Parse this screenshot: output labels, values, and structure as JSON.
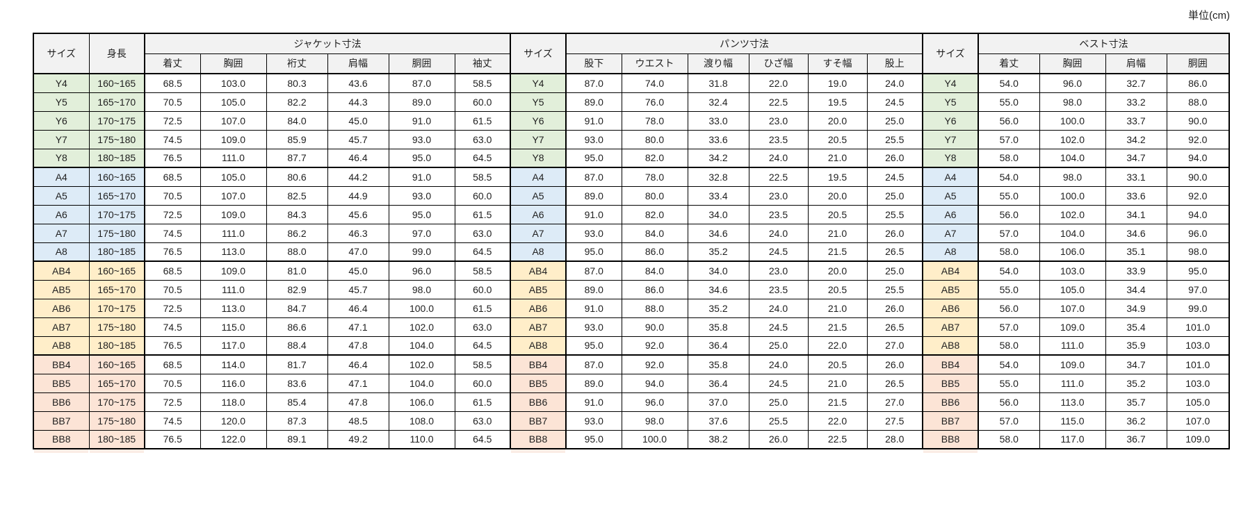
{
  "unit_label": "単位(cm)",
  "colors": {
    "group_y": "#e2efda",
    "group_a": "#ddebf7",
    "group_ab": "#ffeec9",
    "group_bb": "#fce4d6",
    "header_bg": "#f2f2f2",
    "border": "#000000"
  },
  "table": {
    "headers": {
      "size": "サイズ",
      "height": "身長",
      "jacket_group": "ジャケット寸法",
      "jacket_cols": [
        "着丈",
        "胸囲",
        "裄丈",
        "肩幅",
        "胴囲",
        "袖丈"
      ],
      "pants_group": "パンツ寸法",
      "pants_cols": [
        "股下",
        "ウエスト",
        "渡り幅",
        "ひざ幅",
        "すそ幅",
        "股上"
      ],
      "vest_group": "ベスト寸法",
      "vest_cols": [
        "着丈",
        "胸囲",
        "肩幅",
        "胴囲"
      ]
    },
    "groups": [
      {
        "name": "Y",
        "color": "#e2efda",
        "rows": [
          {
            "size": "Y4",
            "height": "160~165",
            "jacket": [
              "68.5",
              "103.0",
              "80.3",
              "43.6",
              "87.0",
              "58.5"
            ],
            "pants": [
              "87.0",
              "74.0",
              "31.8",
              "22.0",
              "19.0",
              "24.0"
            ],
            "vest": [
              "54.0",
              "96.0",
              "32.7",
              "86.0"
            ]
          },
          {
            "size": "Y5",
            "height": "165~170",
            "jacket": [
              "70.5",
              "105.0",
              "82.2",
              "44.3",
              "89.0",
              "60.0"
            ],
            "pants": [
              "89.0",
              "76.0",
              "32.4",
              "22.5",
              "19.5",
              "24.5"
            ],
            "vest": [
              "55.0",
              "98.0",
              "33.2",
              "88.0"
            ]
          },
          {
            "size": "Y6",
            "height": "170~175",
            "jacket": [
              "72.5",
              "107.0",
              "84.0",
              "45.0",
              "91.0",
              "61.5"
            ],
            "pants": [
              "91.0",
              "78.0",
              "33.0",
              "23.0",
              "20.0",
              "25.0"
            ],
            "vest": [
              "56.0",
              "100.0",
              "33.7",
              "90.0"
            ]
          },
          {
            "size": "Y7",
            "height": "175~180",
            "jacket": [
              "74.5",
              "109.0",
              "85.9",
              "45.7",
              "93.0",
              "63.0"
            ],
            "pants": [
              "93.0",
              "80.0",
              "33.6",
              "23.5",
              "20.5",
              "25.5"
            ],
            "vest": [
              "57.0",
              "102.0",
              "34.2",
              "92.0"
            ]
          },
          {
            "size": "Y8",
            "height": "180~185",
            "jacket": [
              "76.5",
              "111.0",
              "87.7",
              "46.4",
              "95.0",
              "64.5"
            ],
            "pants": [
              "95.0",
              "82.0",
              "34.2",
              "24.0",
              "21.0",
              "26.0"
            ],
            "vest": [
              "58.0",
              "104.0",
              "34.7",
              "94.0"
            ]
          }
        ]
      },
      {
        "name": "A",
        "color": "#ddebf7",
        "rows": [
          {
            "size": "A4",
            "height": "160~165",
            "jacket": [
              "68.5",
              "105.0",
              "80.6",
              "44.2",
              "91.0",
              "58.5"
            ],
            "pants": [
              "87.0",
              "78.0",
              "32.8",
              "22.5",
              "19.5",
              "24.5"
            ],
            "vest": [
              "54.0",
              "98.0",
              "33.1",
              "90.0"
            ]
          },
          {
            "size": "A5",
            "height": "165~170",
            "jacket": [
              "70.5",
              "107.0",
              "82.5",
              "44.9",
              "93.0",
              "60.0"
            ],
            "pants": [
              "89.0",
              "80.0",
              "33.4",
              "23.0",
              "20.0",
              "25.0"
            ],
            "vest": [
              "55.0",
              "100.0",
              "33.6",
              "92.0"
            ]
          },
          {
            "size": "A6",
            "height": "170~175",
            "jacket": [
              "72.5",
              "109.0",
              "84.3",
              "45.6",
              "95.0",
              "61.5"
            ],
            "pants": [
              "91.0",
              "82.0",
              "34.0",
              "23.5",
              "20.5",
              "25.5"
            ],
            "vest": [
              "56.0",
              "102.0",
              "34.1",
              "94.0"
            ]
          },
          {
            "size": "A7",
            "height": "175~180",
            "jacket": [
              "74.5",
              "111.0",
              "86.2",
              "46.3",
              "97.0",
              "63.0"
            ],
            "pants": [
              "93.0",
              "84.0",
              "34.6",
              "24.0",
              "21.0",
              "26.0"
            ],
            "vest": [
              "57.0",
              "104.0",
              "34.6",
              "96.0"
            ]
          },
          {
            "size": "A8",
            "height": "180~185",
            "jacket": [
              "76.5",
              "113.0",
              "88.0",
              "47.0",
              "99.0",
              "64.5"
            ],
            "pants": [
              "95.0",
              "86.0",
              "35.2",
              "24.5",
              "21.5",
              "26.5"
            ],
            "vest": [
              "58.0",
              "106.0",
              "35.1",
              "98.0"
            ]
          }
        ]
      },
      {
        "name": "AB",
        "color": "#ffeec9",
        "rows": [
          {
            "size": "AB4",
            "height": "160~165",
            "jacket": [
              "68.5",
              "109.0",
              "81.0",
              "45.0",
              "96.0",
              "58.5"
            ],
            "pants": [
              "87.0",
              "84.0",
              "34.0",
              "23.0",
              "20.0",
              "25.0"
            ],
            "vest": [
              "54.0",
              "103.0",
              "33.9",
              "95.0"
            ]
          },
          {
            "size": "AB5",
            "height": "165~170",
            "jacket": [
              "70.5",
              "111.0",
              "82.9",
              "45.7",
              "98.0",
              "60.0"
            ],
            "pants": [
              "89.0",
              "86.0",
              "34.6",
              "23.5",
              "20.5",
              "25.5"
            ],
            "vest": [
              "55.0",
              "105.0",
              "34.4",
              "97.0"
            ]
          },
          {
            "size": "AB6",
            "height": "170~175",
            "jacket": [
              "72.5",
              "113.0",
              "84.7",
              "46.4",
              "100.0",
              "61.5"
            ],
            "pants": [
              "91.0",
              "88.0",
              "35.2",
              "24.0",
              "21.0",
              "26.0"
            ],
            "vest": [
              "56.0",
              "107.0",
              "34.9",
              "99.0"
            ]
          },
          {
            "size": "AB7",
            "height": "175~180",
            "jacket": [
              "74.5",
              "115.0",
              "86.6",
              "47.1",
              "102.0",
              "63.0"
            ],
            "pants": [
              "93.0",
              "90.0",
              "35.8",
              "24.5",
              "21.5",
              "26.5"
            ],
            "vest": [
              "57.0",
              "109.0",
              "35.4",
              "101.0"
            ]
          },
          {
            "size": "AB8",
            "height": "180~185",
            "jacket": [
              "76.5",
              "117.0",
              "88.4",
              "47.8",
              "104.0",
              "64.5"
            ],
            "pants": [
              "95.0",
              "92.0",
              "36.4",
              "25.0",
              "22.0",
              "27.0"
            ],
            "vest": [
              "58.0",
              "111.0",
              "35.9",
              "103.0"
            ]
          }
        ]
      },
      {
        "name": "BB",
        "color": "#fce4d6",
        "rows": [
          {
            "size": "BB4",
            "height": "160~165",
            "jacket": [
              "68.5",
              "114.0",
              "81.7",
              "46.4",
              "102.0",
              "58.5"
            ],
            "pants": [
              "87.0",
              "92.0",
              "35.8",
              "24.0",
              "20.5",
              "26.0"
            ],
            "vest": [
              "54.0",
              "109.0",
              "34.7",
              "101.0"
            ]
          },
          {
            "size": "BB5",
            "height": "165~170",
            "jacket": [
              "70.5",
              "116.0",
              "83.6",
              "47.1",
              "104.0",
              "60.0"
            ],
            "pants": [
              "89.0",
              "94.0",
              "36.4",
              "24.5",
              "21.0",
              "26.5"
            ],
            "vest": [
              "55.0",
              "111.0",
              "35.2",
              "103.0"
            ]
          },
          {
            "size": "BB6",
            "height": "170~175",
            "jacket": [
              "72.5",
              "118.0",
              "85.4",
              "47.8",
              "106.0",
              "61.5"
            ],
            "pants": [
              "91.0",
              "96.0",
              "37.0",
              "25.0",
              "21.5",
              "27.0"
            ],
            "vest": [
              "56.0",
              "113.0",
              "35.7",
              "105.0"
            ]
          },
          {
            "size": "BB7",
            "height": "175~180",
            "jacket": [
              "74.5",
              "120.0",
              "87.3",
              "48.5",
              "108.0",
              "63.0"
            ],
            "pants": [
              "93.0",
              "98.0",
              "37.6",
              "25.5",
              "22.0",
              "27.5"
            ],
            "vest": [
              "57.0",
              "115.0",
              "36.2",
              "107.0"
            ]
          },
          {
            "size": "BB8",
            "height": "180~185",
            "jacket": [
              "76.5",
              "122.0",
              "89.1",
              "49.2",
              "110.0",
              "64.5"
            ],
            "pants": [
              "95.0",
              "100.0",
              "38.2",
              "26.0",
              "22.5",
              "28.0"
            ],
            "vest": [
              "58.0",
              "117.0",
              "36.7",
              "109.0"
            ]
          }
        ]
      }
    ]
  }
}
